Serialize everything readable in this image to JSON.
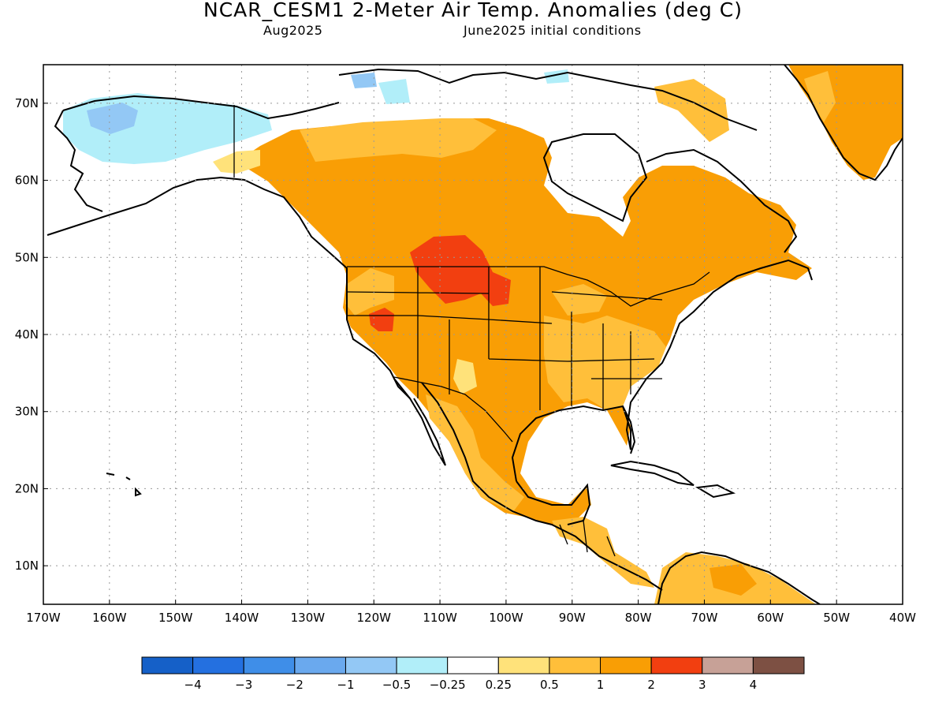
{
  "header": {
    "title": "NCAR_CESM1 2-Meter Air Temp. Anomalies (deg C)",
    "valid_month": "Aug2025",
    "init": "June2025 initial conditions"
  },
  "map": {
    "lon_range": [
      -170,
      -40
    ],
    "lat_range": [
      5,
      75
    ],
    "lon_labels": [
      "170W",
      "160W",
      "150W",
      "140W",
      "130W",
      "120W",
      "110W",
      "100W",
      "90W",
      "80W",
      "70W",
      "60W",
      "50W",
      "40W"
    ],
    "lat_labels": [
      "10N",
      "20N",
      "30N",
      "40N",
      "50N",
      "60N",
      "70N"
    ],
    "grid": true
  },
  "colorbar": {
    "colors": [
      "#1560c8",
      "#2470e0",
      "#3f8ee8",
      "#6aa9ee",
      "#93c8f5",
      "#b1eef9",
      "#ffffff",
      "#ffe27a",
      "#ffbf3a",
      "#f99e05",
      "#f23f10",
      "#c7a197",
      "#7d5043"
    ],
    "labels": [
      "−4",
      "−3",
      "−2",
      "−1",
      "−0.5",
      "−0.25",
      "0.25",
      "0.5",
      "1",
      "2",
      "3",
      "4"
    ]
  }
}
